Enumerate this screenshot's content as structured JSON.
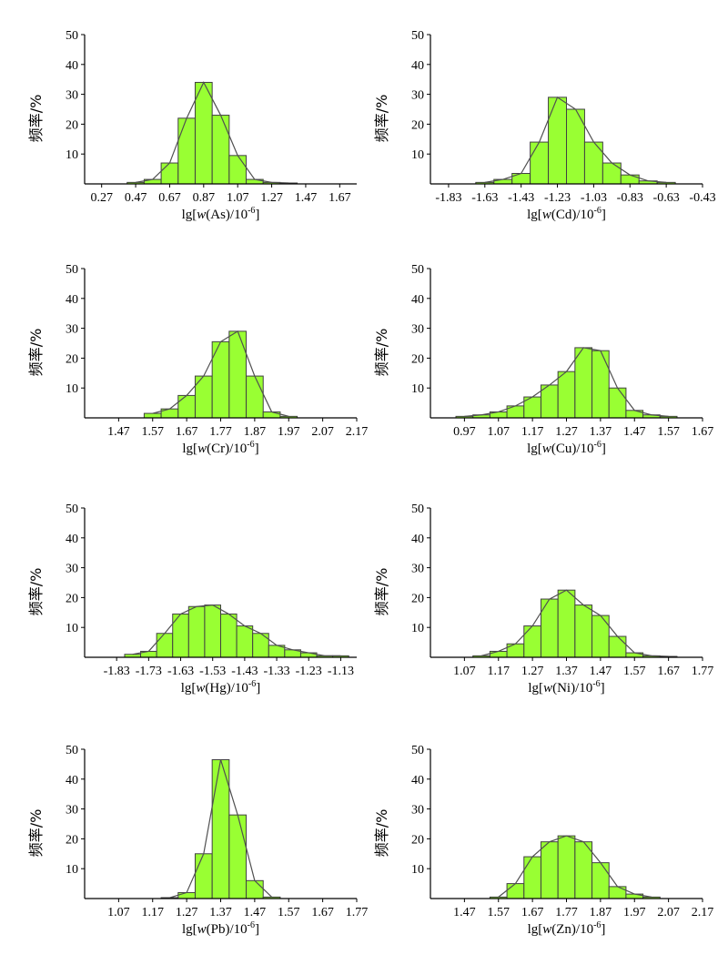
{
  "colors": {
    "bar_fill": "#99ff33",
    "bar_stroke": "#404040",
    "line": "#505050",
    "axis": "#000000"
  },
  "chart_data": [
    {
      "type": "bar",
      "ylabel": "频率/%",
      "xlabel": {
        "prefix": "lg[",
        "italic": "w",
        "element": "(As)",
        "suffix": "/10",
        "exponent": "-6",
        "close": "]"
      },
      "ylim": [
        0,
        50
      ],
      "yticks": [
        "10",
        "20",
        "30",
        "40",
        "50"
      ],
      "xlim": [
        0.17,
        1.77
      ],
      "bin_width": 0.1,
      "xticks": [
        "0.27",
        "0.47",
        "0.67",
        "0.87",
        "1.07",
        "1.27",
        "1.47",
        "1.67"
      ],
      "bin_centers": [
        0.47,
        0.57,
        0.67,
        0.77,
        0.87,
        0.97,
        1.07,
        1.17,
        1.27,
        1.37
      ],
      "values": [
        0.5,
        1.5,
        7,
        22,
        34,
        23,
        9.5,
        1.5,
        0.5,
        0.3
      ],
      "legend": false,
      "grid": false
    },
    {
      "type": "bar",
      "ylabel": "频率/%",
      "xlabel": {
        "prefix": "lg[",
        "italic": "w",
        "element": "(Cd)",
        "suffix": "/10",
        "exponent": "-6",
        "close": "]"
      },
      "ylim": [
        0,
        50
      ],
      "yticks": [
        "10",
        "20",
        "30",
        "40",
        "50"
      ],
      "xlim": [
        -1.93,
        -0.43
      ],
      "bin_width": 0.1,
      "xticks": [
        "-1.83",
        "-1.63",
        "-1.43",
        "-1.23",
        "-1.03",
        "-0.83",
        "-0.63",
        "-0.43"
      ],
      "bin_centers": [
        -1.63,
        -1.53,
        -1.43,
        -1.33,
        -1.23,
        -1.13,
        -1.03,
        -0.93,
        -0.83,
        -0.73,
        -0.63
      ],
      "values": [
        0.5,
        1.5,
        3.5,
        14,
        29,
        25,
        14,
        7,
        3,
        1,
        0.5
      ],
      "legend": false,
      "grid": false
    },
    {
      "type": "bar",
      "ylabel": "频率/%",
      "xlabel": {
        "prefix": "lg[",
        "italic": "w",
        "element": "(Cr)",
        "suffix": "/10",
        "exponent": "-6",
        "close": "]"
      },
      "ylim": [
        0,
        50
      ],
      "yticks": [
        "10",
        "20",
        "30",
        "40",
        "50"
      ],
      "xlim": [
        1.37,
        2.17
      ],
      "bin_width": 0.05,
      "xticks": [
        "1.47",
        "1.57",
        "1.67",
        "1.77",
        "1.87",
        "1.97",
        "2.07",
        "2.17"
      ],
      "bin_centers": [
        1.57,
        1.62,
        1.67,
        1.72,
        1.77,
        1.82,
        1.87,
        1.92,
        1.97
      ],
      "values": [
        1.5,
        3,
        7.5,
        14,
        25.5,
        29,
        14,
        2,
        0.5
      ],
      "legend": false,
      "grid": false
    },
    {
      "type": "bar",
      "ylabel": "频率/%",
      "xlabel": {
        "prefix": "lg[",
        "italic": "w",
        "element": "(Cu)",
        "suffix": "/10",
        "exponent": "-6",
        "close": "]"
      },
      "ylim": [
        0,
        50
      ],
      "yticks": [
        "10",
        "20",
        "30",
        "40",
        "50"
      ],
      "xlim": [
        0.87,
        1.67
      ],
      "bin_width": 0.05,
      "xticks": [
        "0.97",
        "1.07",
        "1.17",
        "1.27",
        "1.37",
        "1.47",
        "1.57",
        "1.67"
      ],
      "bin_centers": [
        0.97,
        1.02,
        1.07,
        1.12,
        1.17,
        1.22,
        1.27,
        1.32,
        1.37,
        1.42,
        1.47,
        1.52,
        1.57
      ],
      "values": [
        0.5,
        1,
        2,
        4,
        7,
        11,
        15.5,
        23.5,
        22.5,
        10,
        2.5,
        1,
        0.5
      ],
      "legend": false,
      "grid": false
    },
    {
      "type": "bar",
      "ylabel": "频率/%",
      "xlabel": {
        "prefix": "lg[",
        "italic": "w",
        "element": "(Hg)",
        "suffix": "/10",
        "exponent": "-6",
        "close": "]"
      },
      "ylim": [
        0,
        50
      ],
      "yticks": [
        "10",
        "20",
        "30",
        "40",
        "50"
      ],
      "xlim": [
        -1.93,
        -1.08
      ],
      "bin_width": 0.05,
      "xticks": [
        "-1.83",
        "-1.73",
        "-1.63",
        "-1.53",
        "-1.43",
        "-1.33",
        "-1.23",
        "-1.13"
      ],
      "bin_centers": [
        -1.78,
        -1.73,
        -1.68,
        -1.63,
        -1.58,
        -1.53,
        -1.48,
        -1.43,
        -1.38,
        -1.33,
        -1.28,
        -1.23,
        -1.18,
        -1.13
      ],
      "values": [
        1,
        2,
        8,
        14.5,
        17,
        17.5,
        14.5,
        10.5,
        8,
        4,
        2.5,
        1.5,
        0.5,
        0.5
      ],
      "legend": false,
      "grid": false
    },
    {
      "type": "bar",
      "ylabel": "频率/%",
      "xlabel": {
        "prefix": "lg[",
        "italic": "w",
        "element": "(Ni)",
        "suffix": "/10",
        "exponent": "-6",
        "close": "]"
      },
      "ylim": [
        0,
        50
      ],
      "yticks": [
        "10",
        "20",
        "30",
        "40",
        "50"
      ],
      "xlim": [
        0.97,
        1.77
      ],
      "bin_width": 0.05,
      "xticks": [
        "1.07",
        "1.17",
        "1.27",
        "1.37",
        "1.47",
        "1.57",
        "1.67",
        "1.77"
      ],
      "bin_centers": [
        1.12,
        1.17,
        1.22,
        1.27,
        1.32,
        1.37,
        1.42,
        1.47,
        1.52,
        1.57,
        1.62,
        1.67
      ],
      "values": [
        0.5,
        2,
        4.5,
        10.5,
        19.5,
        22.5,
        17.5,
        14,
        7,
        1.5,
        0.5,
        0.3
      ],
      "legend": false,
      "grid": false
    },
    {
      "type": "bar",
      "ylabel": "频率/%",
      "xlabel": {
        "prefix": "lg[",
        "italic": "w",
        "element": "(Pb)",
        "suffix": "/10",
        "exponent": "-6",
        "close": "]"
      },
      "ylim": [
        0,
        50
      ],
      "yticks": [
        "10",
        "20",
        "30",
        "40",
        "50"
      ],
      "xlim": [
        0.97,
        1.77
      ],
      "bin_width": 0.05,
      "xticks": [
        "1.07",
        "1.17",
        "1.27",
        "1.37",
        "1.47",
        "1.57",
        "1.67",
        "1.77"
      ],
      "bin_centers": [
        1.22,
        1.27,
        1.32,
        1.37,
        1.42,
        1.47,
        1.52
      ],
      "values": [
        0.3,
        2,
        15,
        46.5,
        28,
        6,
        0.5
      ],
      "legend": false,
      "grid": false
    },
    {
      "type": "bar",
      "ylabel": "频率/%",
      "xlabel": {
        "prefix": "lg[",
        "italic": "w",
        "element": "(Zn)",
        "suffix": "/10",
        "exponent": "-6",
        "close": "]"
      },
      "ylim": [
        0,
        50
      ],
      "yticks": [
        "10",
        "20",
        "30",
        "40",
        "50"
      ],
      "xlim": [
        1.37,
        2.17
      ],
      "bin_width": 0.05,
      "xticks": [
        "1.47",
        "1.57",
        "1.67",
        "1.77",
        "1.87",
        "1.97",
        "2.07",
        "2.17"
      ],
      "bin_centers": [
        1.57,
        1.62,
        1.67,
        1.72,
        1.77,
        1.82,
        1.87,
        1.92,
        1.97,
        2.02
      ],
      "values": [
        0.5,
        5,
        14,
        19,
        21,
        19,
        12,
        4,
        1.5,
        0.5
      ],
      "legend": false,
      "grid": false
    }
  ]
}
